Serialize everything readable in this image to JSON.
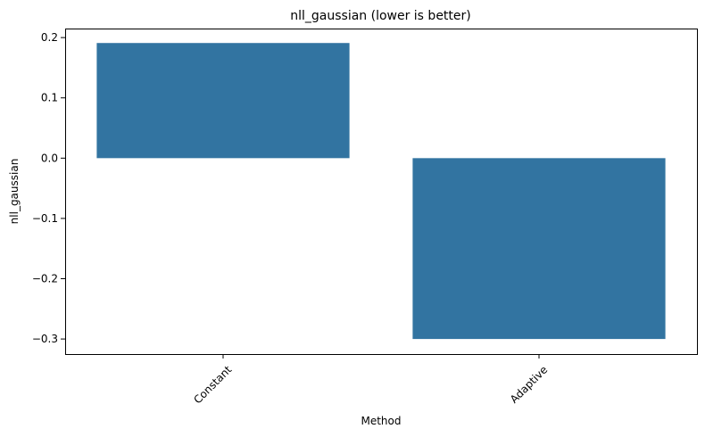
{
  "chart_data": {
    "type": "bar",
    "title": "nll_gaussian (lower is better)",
    "xlabel": "Method",
    "ylabel": "nll_gaussian",
    "categories": [
      "Constant",
      "Adaptive"
    ],
    "values": [
      0.191,
      -0.3
    ],
    "ylim": [
      -0.325,
      0.215
    ],
    "yticks": [
      0.2,
      0.1,
      0.0,
      -0.1,
      -0.2,
      -0.3
    ],
    "ytick_labels": [
      "0.2",
      "0.1",
      "0.0",
      "−0.1",
      "−0.2",
      "−0.3"
    ],
    "xtick_rotation_deg": 45,
    "bar_color": "#3274a1",
    "grid": false,
    "legend": false
  }
}
